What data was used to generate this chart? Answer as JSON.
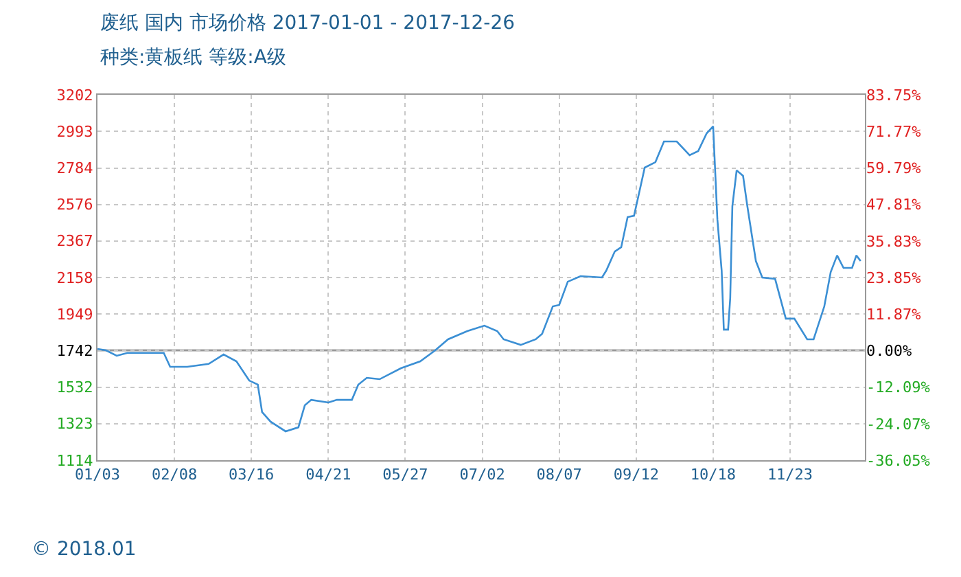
{
  "chart_data": {
    "type": "line",
    "title": "废纸 国内 市场价格 2017-01-01 - 2017-12-26",
    "subtitle": "种类:黄板纸 等级:A级",
    "x": [
      "2017-01-03",
      "2017-01-07",
      "2017-01-12",
      "2017-01-17",
      "2017-02-03",
      "2017-02-06",
      "2017-02-14",
      "2017-02-24",
      "2017-03-03",
      "2017-03-09",
      "2017-03-15",
      "2017-03-19",
      "2017-03-21",
      "2017-03-25",
      "2017-04-01",
      "2017-04-07",
      "2017-04-10",
      "2017-04-13",
      "2017-04-21",
      "2017-04-25",
      "2017-05-02",
      "2017-05-05",
      "2017-05-09",
      "2017-05-15",
      "2017-05-25",
      "2017-06-03",
      "2017-06-10",
      "2017-06-16",
      "2017-06-25",
      "2017-07-03",
      "2017-07-09",
      "2017-07-12",
      "2017-07-20",
      "2017-07-27",
      "2017-07-30",
      "2017-08-04",
      "2017-08-07",
      "2017-08-11",
      "2017-08-17",
      "2017-08-27",
      "2017-08-29",
      "2017-09-02",
      "2017-09-05",
      "2017-09-08",
      "2017-09-11",
      "2017-09-16",
      "2017-09-21",
      "2017-09-25",
      "2017-10-01",
      "2017-10-07",
      "2017-10-11",
      "2017-10-15",
      "2017-10-18",
      "2017-10-20",
      "2017-10-22",
      "2017-10-23",
      "2017-10-25",
      "2017-10-26",
      "2017-10-27",
      "2017-10-29",
      "2017-11-01",
      "2017-11-03",
      "2017-11-07",
      "2017-11-10",
      "2017-11-16",
      "2017-11-21",
      "2017-11-25",
      "2017-12-01",
      "2017-12-04",
      "2017-12-09",
      "2017-12-12",
      "2017-12-15",
      "2017-12-18",
      "2017-12-22",
      "2017-12-24",
      "2017-12-26"
    ],
    "series": [
      {
        "color": "#3b8fd4",
        "values": [
          1750,
          1742,
          1711,
          1727,
          1727,
          1648,
          1648,
          1664,
          1718,
          1679,
          1569,
          1546,
          1389,
          1334,
          1279,
          1302,
          1428,
          1459,
          1444,
          1459,
          1459,
          1546,
          1585,
          1577,
          1640,
          1679,
          1742,
          1805,
          1852,
          1883,
          1852,
          1805,
          1773,
          1805,
          1836,
          1993,
          2001,
          2134,
          2166,
          2158,
          2197,
          2307,
          2331,
          2503,
          2511,
          2786,
          2817,
          2935,
          2935,
          2857,
          2880,
          2982,
          3022,
          2488,
          2197,
          1860,
          1860,
          2040,
          2566,
          2770,
          2739,
          2566,
          2252,
          2158,
          2150,
          1923,
          1923,
          1805,
          1805,
          1993,
          2189,
          2284,
          2213,
          2213,
          2284,
          2252
        ]
      }
    ],
    "xlim": [
      "2017-01-03",
      "2017-12-28"
    ],
    "xticks": [
      {
        "value": "2017-01-03",
        "label": "01/03"
      },
      {
        "value": "2017-02-08",
        "label": "02/08"
      },
      {
        "value": "2017-03-16",
        "label": "03/16"
      },
      {
        "value": "2017-04-21",
        "label": "04/21"
      },
      {
        "value": "2017-05-27",
        "label": "05/27"
      },
      {
        "value": "2017-07-02",
        "label": "07/02"
      },
      {
        "value": "2017-08-07",
        "label": "08/07"
      },
      {
        "value": "2017-09-12",
        "label": "09/12"
      },
      {
        "value": "2017-10-18",
        "label": "10/18"
      },
      {
        "value": "2017-11-23",
        "label": "11/23"
      }
    ],
    "ylim": [
      1114,
      3202
    ],
    "yticks": [
      1114,
      1323,
      1532,
      1742,
      1949,
      2158,
      2367,
      2576,
      2784,
      2993,
      3202
    ],
    "y2lim": [
      -36.05,
      83.75
    ],
    "y2ticks": [
      {
        "value": -36.05,
        "label": "-36.05%"
      },
      {
        "value": -24.07,
        "label": "-24.07%"
      },
      {
        "value": -12.09,
        "label": "-12.09%"
      },
      {
        "value": 0,
        "label": "0.00%"
      },
      {
        "value": 11.87,
        "label": "11.87%"
      },
      {
        "value": 23.85,
        "label": "23.85%"
      },
      {
        "value": 35.83,
        "label": "35.83%"
      },
      {
        "value": 47.81,
        "label": "47.81%"
      },
      {
        "value": 59.79,
        "label": "59.79%"
      },
      {
        "value": 71.77,
        "label": "71.77%"
      },
      {
        "value": 83.75,
        "label": "83.75%"
      }
    ],
    "ref_lines": [
      {
        "axis": "y",
        "value": 1742,
        "color": "#999999"
      }
    ],
    "grid": true,
    "marker": "none",
    "line_style": "solid",
    "annotations": [
      "© 2018.01"
    ]
  }
}
